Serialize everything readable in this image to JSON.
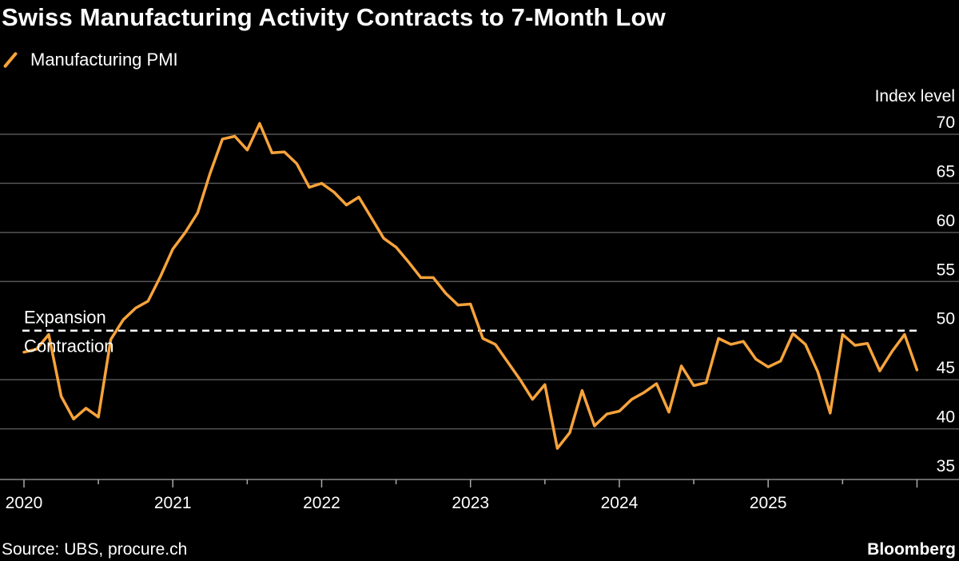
{
  "header": {
    "title": "Swiss Manufacturing Activity Contracts to 7-Month Low"
  },
  "legend": {
    "label": "Manufacturing PMI"
  },
  "footer": {
    "source": "Source: UBS, procure.ch",
    "brand": "Bloomberg"
  },
  "colors": {
    "line": "#f7a33b",
    "grid": "#555555",
    "threshold": "#ffffff"
  },
  "chart_data": {
    "type": "line",
    "title": "Swiss Manufacturing Activity Contracts to 7-Month Low",
    "ylabel": "Index level",
    "xlabel": "",
    "ylim": [
      35,
      70
    ],
    "yticks": [
      35,
      40,
      45,
      50,
      55,
      60,
      65,
      70
    ],
    "xticks": [
      "2020",
      "2021",
      "2022",
      "2023",
      "2024",
      "2025"
    ],
    "start": "2020-01",
    "threshold": {
      "value": 50,
      "above_label": "Expansion",
      "below_label": "Contraction"
    },
    "series": [
      {
        "name": "Manufacturing PMI",
        "values": [
          47.8,
          48.1,
          49.6,
          43.3,
          41.0,
          42.1,
          41.2,
          49.1,
          51.1,
          52.3,
          53.0,
          55.5,
          58.3,
          60.0,
          62.0,
          66.0,
          69.5,
          69.8,
          68.4,
          71.1,
          68.1,
          68.2,
          67.0,
          64.6,
          65.0,
          64.1,
          62.8,
          63.6,
          61.5,
          59.4,
          58.5,
          57.0,
          55.4,
          55.4,
          53.8,
          52.6,
          52.7,
          49.2,
          48.6,
          46.8,
          45.0,
          43.0,
          44.5,
          38.0,
          39.6,
          43.9,
          40.3,
          41.5,
          41.8,
          43.0,
          43.7,
          44.6,
          41.7,
          46.4,
          44.4,
          44.7,
          49.2,
          48.6,
          48.9,
          47.1,
          46.3,
          46.9,
          49.7,
          48.6,
          45.8,
          41.6,
          49.6,
          48.5,
          48.7,
          45.9,
          47.9,
          49.6,
          46.0
        ]
      }
    ]
  }
}
